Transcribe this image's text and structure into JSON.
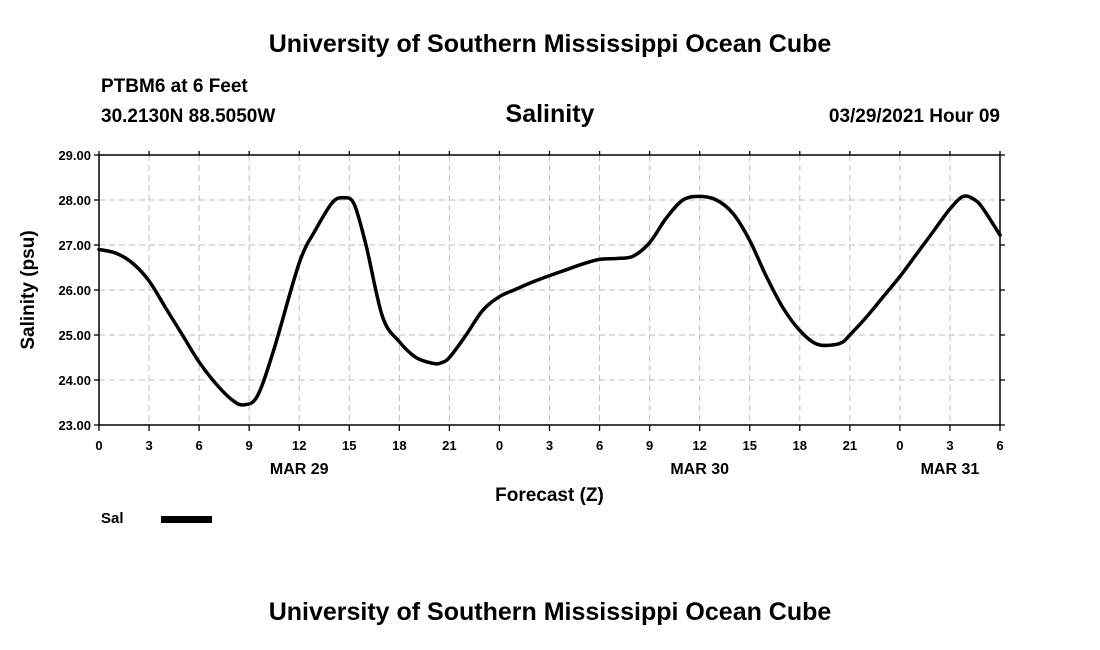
{
  "header": {
    "title": "University of Southern Mississippi Ocean Cube",
    "station": "PTBM6 at 6 Feet",
    "coordinates": "30.2130N  88.5050W",
    "variable": "Salinity",
    "timestamp": "03/29/2021 Hour 09"
  },
  "footer": {
    "title": "University of Southern Mississippi Ocean Cube"
  },
  "legend": {
    "label": "Sal",
    "color": "#000000"
  },
  "chart_data": {
    "type": "line",
    "title": "Salinity",
    "xlabel": "Forecast (Z)",
    "ylabel": "Salinity (psu)",
    "ylim": [
      23,
      29
    ],
    "yticks": [
      "23.00",
      "24.00",
      "25.00",
      "26.00",
      "27.00",
      "28.00",
      "29.00"
    ],
    "xlim": [
      0,
      54
    ],
    "xtick_hours": [
      0,
      3,
      6,
      9,
      12,
      15,
      18,
      21,
      24,
      27,
      30,
      33,
      36,
      39,
      42,
      45,
      48,
      51,
      54
    ],
    "xtick_labels": [
      "0",
      "3",
      "6",
      "9",
      "12",
      "15",
      "18",
      "21",
      "0",
      "3",
      "6",
      "9",
      "12",
      "15",
      "18",
      "21",
      "0",
      "3",
      "6"
    ],
    "date_labels": [
      {
        "hour": 12,
        "label": "MAR 29"
      },
      {
        "hour": 36,
        "label": "MAR 30"
      },
      {
        "hour": 51,
        "label": "MAR 31"
      }
    ],
    "grid": true,
    "series": [
      {
        "name": "Sal",
        "color": "#000000",
        "x": [
          0,
          1,
          2,
          3,
          4,
          5,
          6,
          7,
          8,
          8.7,
          9.5,
          10.5,
          12,
          13,
          14,
          14.7,
          15.3,
          16,
          17,
          18,
          19,
          20,
          20.5,
          21,
          22,
          23,
          24,
          25,
          26,
          27,
          28,
          29,
          30,
          31,
          32,
          33,
          34,
          35,
          36,
          37,
          38,
          39,
          40,
          41,
          42,
          43,
          44,
          44.6,
          45,
          46,
          47,
          48,
          49,
          50,
          51,
          51.8,
          52.5,
          53,
          54
        ],
        "y": [
          26.9,
          26.82,
          26.6,
          26.2,
          25.6,
          25.0,
          24.4,
          23.92,
          23.55,
          23.45,
          23.65,
          24.7,
          26.6,
          27.35,
          27.95,
          28.05,
          27.9,
          27.0,
          25.4,
          24.85,
          24.5,
          24.37,
          24.38,
          24.5,
          25.0,
          25.55,
          25.85,
          26.02,
          26.18,
          26.32,
          26.45,
          26.58,
          26.68,
          26.7,
          26.75,
          27.05,
          27.6,
          28.0,
          28.08,
          28.0,
          27.7,
          27.1,
          26.3,
          25.6,
          25.1,
          24.8,
          24.78,
          24.85,
          25.0,
          25.4,
          25.85,
          26.3,
          26.8,
          27.3,
          27.8,
          28.08,
          28.0,
          27.8,
          27.22
        ]
      }
    ]
  }
}
